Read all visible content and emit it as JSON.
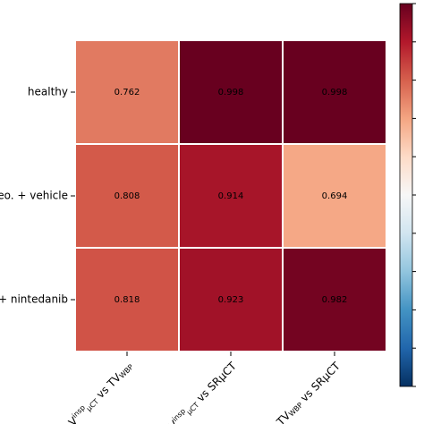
{
  "chart_data": {
    "type": "heatmap",
    "rows": [
      "healthy",
      "eo. + vehicle",
      "+ nintedanib"
    ],
    "columns": [
      [
        {
          "t": "V"
        },
        {
          "t": "insp",
          "pos": "sup"
        },
        {
          "t": "µCT",
          "pos": "sub"
        },
        {
          "t": " vs TV"
        },
        {
          "t": "WBP",
          "pos": "sub"
        }
      ],
      [
        {
          "t": "V"
        },
        {
          "t": "insp",
          "pos": "sup"
        },
        {
          "t": "µCT",
          "pos": "sub"
        },
        {
          "t": " vs SRµCT"
        }
      ],
      [
        {
          "t": "TV"
        },
        {
          "t": "WBP",
          "pos": "sub"
        },
        {
          "t": " vs SRµCT"
        }
      ]
    ],
    "values": [
      [
        0.762,
        0.998,
        0.998
      ],
      [
        0.808,
        0.914,
        0.694
      ],
      [
        0.818,
        0.923,
        0.982
      ]
    ],
    "colormap": "RdBu_r",
    "clim": [
      0,
      1
    ],
    "cticks": [
      0,
      0.1,
      0.2,
      0.3,
      0.4,
      0.5,
      0.6,
      0.7,
      0.8,
      0.9,
      1.0
    ],
    "value_label_color": "#ffffff"
  }
}
